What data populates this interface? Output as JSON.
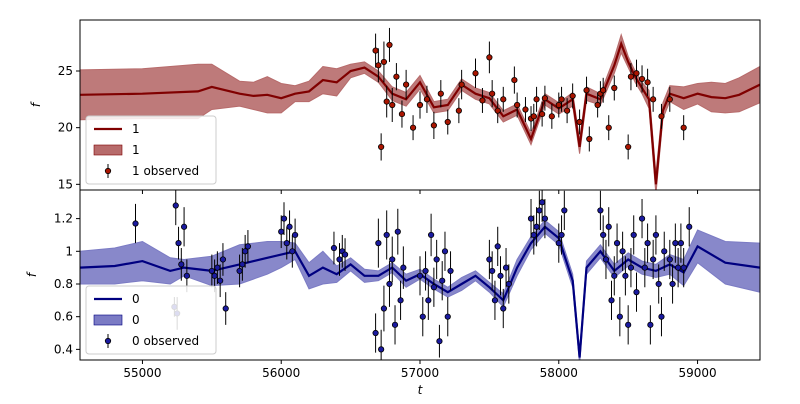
{
  "figure": {
    "xlabel": "t"
  },
  "chart_data": [
    {
      "type": "line",
      "panel": "top",
      "ylabel": "f",
      "ylim": [
        14.5,
        29.5
      ],
      "xlim": [
        54550,
        59450
      ],
      "yticks": [
        15,
        20,
        25
      ],
      "xticks": [
        55000,
        56000,
        57000,
        58000,
        59000
      ],
      "x_tick_labels_visible": false,
      "legend_placement": "lower left",
      "colors": {
        "line": "#800000",
        "band": "#b76b6b",
        "point": "#aa1500"
      },
      "legend": [
        {
          "kind": "line",
          "label": "1"
        },
        {
          "kind": "band",
          "label": "1"
        },
        {
          "kind": "errorbar",
          "label": "1 observed"
        }
      ],
      "model_series": {
        "name": "1",
        "x": [
          54550,
          55000,
          55400,
          55500,
          55700,
          55800,
          55900,
          56000,
          56100,
          56200,
          56300,
          56400,
          56500,
          56600,
          56700,
          56800,
          56900,
          57000,
          57100,
          57200,
          57300,
          57400,
          57500,
          57600,
          57700,
          57800,
          57900,
          58000,
          58100,
          58150,
          58200,
          58300,
          58400,
          58450,
          58500,
          58550,
          58600,
          58650,
          58700,
          58750,
          58800,
          58900,
          59000,
          59100,
          59200,
          59300,
          59450
        ],
        "y": [
          22.9,
          23.0,
          23.2,
          23.6,
          23.0,
          22.8,
          22.9,
          22.6,
          23.0,
          23.2,
          24.2,
          24.0,
          25.0,
          25.3,
          24.5,
          23.0,
          22.5,
          24.0,
          21.8,
          22.0,
          23.8,
          23.0,
          22.6,
          21.0,
          21.6,
          19.0,
          22.5,
          21.7,
          22.5,
          18.3,
          23.0,
          22.5,
          25.5,
          27.4,
          25.8,
          24.5,
          23.5,
          22.5,
          15.0,
          21.5,
          23.0,
          22.6,
          23.0,
          22.7,
          22.6,
          22.9,
          23.8
        ],
        "band": [
          2.2,
          2.2,
          2.4,
          2.0,
          1.1,
          1.2,
          1.6,
          1.3,
          0.7,
          0.9,
          1.2,
          1.2,
          0.6,
          0.5,
          0.5,
          0.6,
          0.6,
          0.6,
          0.5,
          0.5,
          0.5,
          0.5,
          0.5,
          0.5,
          0.5,
          0.5,
          0.5,
          0.5,
          0.6,
          0.6,
          0.6,
          0.5,
          0.7,
          0.8,
          0.5,
          0.5,
          0.5,
          0.8,
          0.9,
          0.7,
          0.7,
          1.0,
          0.9,
          1.3,
          1.3,
          1.5,
          1.6
        ]
      },
      "observed_series": {
        "name": "1 observed",
        "x": [
          56680,
          56700,
          56720,
          56740,
          56760,
          56780,
          56800,
          56830,
          56870,
          56900,
          56950,
          57000,
          57050,
          57100,
          57150,
          57200,
          57280,
          57300,
          57400,
          57450,
          57500,
          57520,
          57560,
          57600,
          57680,
          57700,
          57760,
          57800,
          57820,
          57840,
          57880,
          57900,
          57950,
          58000,
          58020,
          58060,
          58100,
          58150,
          58200,
          58220,
          58280,
          58300,
          58320,
          58360,
          58400,
          58500,
          58520,
          58560,
          58600,
          58640,
          58680,
          58740,
          58800,
          58900
        ],
        "y": [
          26.8,
          25.5,
          18.3,
          25.8,
          22.3,
          27.3,
          22.0,
          24.5,
          21.2,
          23.8,
          20.0,
          22.0,
          22.5,
          20.2,
          23.0,
          20.5,
          21.5,
          23.8,
          24.8,
          22.4,
          26.2,
          23.0,
          21.5,
          22.5,
          24.2,
          22.0,
          21.6,
          20.8,
          21.0,
          22.5,
          21.2,
          22.6,
          21.0,
          22.0,
          22.5,
          21.5,
          22.8,
          20.5,
          23.3,
          19.0,
          22.0,
          23.0,
          23.3,
          20.0,
          23.5,
          18.3,
          24.5,
          24.8,
          24.3,
          24.0,
          22.5,
          21.0,
          22.5,
          20.0
        ],
        "err": [
          1.5,
          1.5,
          1.2,
          1.8,
          1.4,
          1.5,
          1.5,
          1.2,
          1.2,
          1.3,
          1.1,
          1.2,
          1.2,
          1.2,
          1.2,
          1.1,
          1.1,
          1.3,
          1.3,
          1.1,
          1.4,
          1.2,
          1.1,
          1.1,
          1.2,
          1.1,
          1.1,
          1.1,
          1.1,
          1.1,
          1.1,
          1.1,
          1.1,
          1.1,
          1.1,
          1.1,
          1.1,
          1.1,
          1.2,
          1.1,
          1.1,
          1.1,
          1.1,
          1.1,
          1.1,
          1.1,
          1.2,
          1.2,
          1.2,
          1.2,
          1.1,
          1.1,
          1.1,
          1.1
        ]
      }
    },
    {
      "type": "line",
      "panel": "bottom",
      "ylabel": "f",
      "ylim": [
        0.335,
        1.375
      ],
      "xlim": [
        54550,
        59450
      ],
      "yticks": [
        0.4,
        0.6,
        0.8,
        1.0,
        1.2
      ],
      "xticks": [
        55000,
        56000,
        57000,
        58000,
        59000
      ],
      "x_tick_labels_visible": true,
      "legend_placement": "lower left",
      "colors": {
        "line": "#000080",
        "band": "#7b7bc4",
        "point": "#1a1aa0"
      },
      "legend": [
        {
          "kind": "line",
          "label": "0"
        },
        {
          "kind": "band",
          "label": "0"
        },
        {
          "kind": "errorbar",
          "label": "0 observed"
        }
      ],
      "model_series": {
        "name": "0",
        "x": [
          54550,
          54800,
          55000,
          55200,
          55300,
          55500,
          55700,
          55900,
          56000,
          56100,
          56200,
          56300,
          56400,
          56500,
          56600,
          56700,
          56800,
          56900,
          57000,
          57100,
          57200,
          57300,
          57400,
          57500,
          57600,
          57700,
          57800,
          57900,
          58000,
          58050,
          58100,
          58150,
          58200,
          58300,
          58400,
          58500,
          58600,
          58700,
          58800,
          58900,
          59000,
          59200,
          59450
        ],
        "y": [
          0.9,
          0.91,
          0.94,
          0.88,
          0.9,
          0.88,
          0.92,
          0.96,
          0.98,
          1.0,
          0.85,
          0.9,
          0.86,
          0.92,
          0.85,
          0.85,
          0.9,
          0.82,
          0.86,
          0.8,
          0.75,
          0.8,
          0.85,
          0.78,
          0.7,
          0.9,
          1.05,
          1.15,
          1.08,
          0.95,
          0.82,
          0.35,
          0.9,
          1.0,
          0.88,
          0.95,
          0.9,
          0.88,
          0.92,
          0.87,
          1.03,
          0.93,
          0.9
        ],
        "band": [
          0.1,
          0.11,
          0.12,
          0.08,
          0.05,
          0.09,
          0.12,
          0.1,
          0.08,
          0.05,
          0.08,
          0.1,
          0.05,
          0.04,
          0.04,
          0.03,
          0.03,
          0.04,
          0.03,
          0.03,
          0.03,
          0.04,
          0.03,
          0.03,
          0.04,
          0.05,
          0.04,
          0.04,
          0.04,
          0.04,
          0.04,
          0.04,
          0.04,
          0.04,
          0.04,
          0.04,
          0.04,
          0.04,
          0.06,
          0.08,
          0.1,
          0.13,
          0.15
        ]
      },
      "observed_series": {
        "name": "0 observed",
        "x": [
          54950,
          55230,
          55240,
          55250,
          55260,
          55280,
          55300,
          55320,
          55500,
          55520,
          55540,
          55560,
          55580,
          55600,
          55700,
          55720,
          55740,
          55760,
          56000,
          56020,
          56040,
          56060,
          56080,
          56100,
          56380,
          56420,
          56440,
          56460,
          56680,
          56700,
          56720,
          56740,
          56760,
          56780,
          56800,
          56820,
          56840,
          56860,
          56880,
          57000,
          57020,
          57040,
          57060,
          57080,
          57100,
          57120,
          57140,
          57160,
          57180,
          57200,
          57220,
          57500,
          57520,
          57540,
          57560,
          57580,
          57600,
          57620,
          57640,
          57800,
          57820,
          57840,
          57860,
          57880,
          57900,
          58000,
          58020,
          58040,
          58300,
          58320,
          58340,
          58360,
          58380,
          58400,
          58420,
          58440,
          58460,
          58480,
          58500,
          58520,
          58540,
          58560,
          58600,
          58620,
          58640,
          58660,
          58680,
          58700,
          58720,
          58740,
          58760,
          58800,
          58820,
          58840,
          58860,
          58880,
          58900,
          58940
        ],
        "y": [
          1.17,
          0.66,
          1.28,
          0.62,
          1.05,
          0.92,
          1.15,
          0.85,
          0.88,
          0.85,
          0.9,
          0.82,
          0.95,
          0.65,
          0.88,
          0.92,
          1.0,
          1.03,
          1.12,
          1.2,
          1.05,
          1.15,
          1.0,
          1.1,
          1.02,
          0.95,
          1.0,
          0.98,
          0.5,
          1.05,
          0.4,
          0.65,
          1.1,
          0.8,
          0.95,
          0.55,
          1.12,
          0.7,
          0.9,
          0.85,
          0.6,
          0.88,
          0.7,
          1.1,
          0.78,
          0.95,
          0.45,
          0.82,
          1.0,
          0.6,
          0.88,
          0.95,
          0.88,
          0.7,
          1.03,
          0.85,
          0.65,
          0.9,
          0.8,
          1.2,
          1.1,
          1.15,
          1.25,
          1.3,
          1.2,
          1.05,
          1.1,
          1.25,
          1.25,
          1.1,
          0.95,
          1.15,
          0.7,
          0.85,
          1.05,
          0.6,
          1.0,
          0.85,
          0.55,
          0.9,
          1.1,
          0.75,
          1.2,
          0.9,
          1.05,
          0.55,
          0.95,
          1.1,
          0.8,
          0.6,
          1.0,
          0.95,
          0.8,
          1.05,
          0.9,
          1.05,
          0.9,
          1.15
        ],
        "err": [
          0.12,
          0.06,
          0.12,
          0.1,
          0.1,
          0.1,
          0.12,
          0.1,
          0.1,
          0.1,
          0.1,
          0.1,
          0.1,
          0.1,
          0.1,
          0.1,
          0.1,
          0.1,
          0.1,
          0.1,
          0.1,
          0.1,
          0.1,
          0.1,
          0.1,
          0.1,
          0.1,
          0.1,
          0.12,
          0.15,
          0.12,
          0.14,
          0.15,
          0.14,
          0.14,
          0.12,
          0.14,
          0.12,
          0.13,
          0.12,
          0.12,
          0.12,
          0.12,
          0.13,
          0.12,
          0.12,
          0.1,
          0.12,
          0.12,
          0.12,
          0.12,
          0.12,
          0.12,
          0.12,
          0.12,
          0.12,
          0.12,
          0.12,
          0.12,
          0.12,
          0.12,
          0.12,
          0.12,
          0.12,
          0.12,
          0.12,
          0.12,
          0.12,
          0.12,
          0.12,
          0.12,
          0.12,
          0.12,
          0.12,
          0.12,
          0.12,
          0.12,
          0.12,
          0.12,
          0.12,
          0.12,
          0.12,
          0.12,
          0.12,
          0.12,
          0.12,
          0.12,
          0.12,
          0.12,
          0.12,
          0.12,
          0.12,
          0.12,
          0.12,
          0.12,
          0.12,
          0.12,
          0.12
        ]
      }
    }
  ]
}
